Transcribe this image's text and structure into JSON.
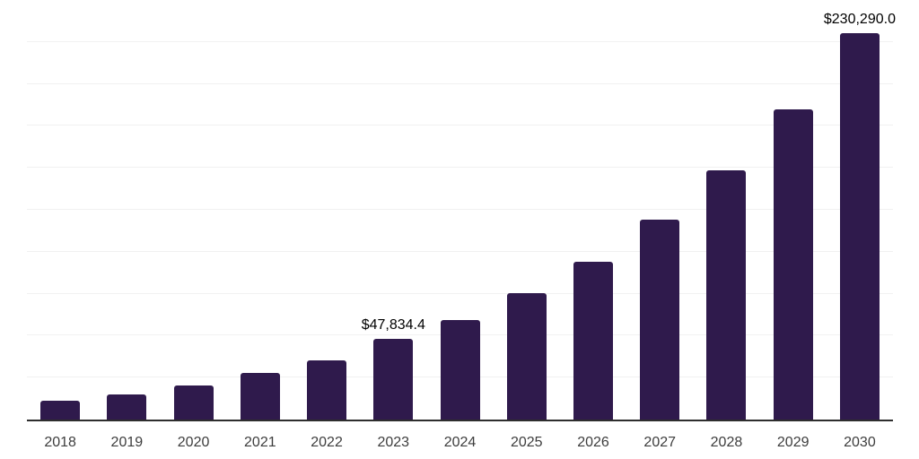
{
  "chart_data": {
    "type": "bar",
    "title": "",
    "xlabel": "",
    "ylabel": "",
    "categories": [
      "2018",
      "2019",
      "2020",
      "2021",
      "2022",
      "2023",
      "2024",
      "2025",
      "2026",
      "2027",
      "2028",
      "2029",
      "2030"
    ],
    "values": [
      11000,
      15000,
      20300,
      27600,
      35500,
      47834.4,
      59400,
      75400,
      94000,
      119200,
      148500,
      184900,
      230290.0
    ],
    "data_labels": {
      "2023": "$47,834.4",
      "2030": "$230,290.0"
    },
    "ylim": [
      0,
      250000
    ],
    "gridline_step": 25000,
    "grid": true,
    "legend_position": "none",
    "y_axis_labels_visible": false,
    "colors": {
      "bar": "#2F1A4C",
      "axis_line": "#2E2E2E",
      "gridline": "#F1F1F1",
      "data_label": "#000000",
      "tick_label": "#3D3D3D",
      "background": "#FFFFFF"
    }
  }
}
